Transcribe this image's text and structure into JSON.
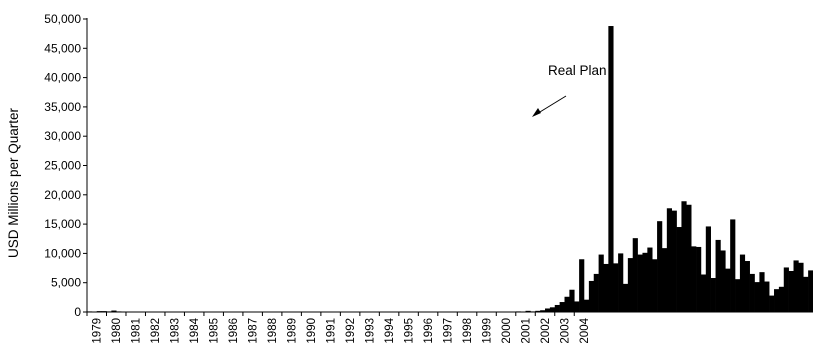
{
  "chart_data": {
    "type": "bar",
    "title": "",
    "xlabel": "",
    "ylabel": "USD Millions per Quarter",
    "ylim": [
      0,
      50000
    ],
    "yticks": [
      0,
      5000,
      10000,
      15000,
      20000,
      25000,
      30000,
      35000,
      40000,
      45000,
      50000
    ],
    "ytick_labels": [
      "0",
      "5,000",
      "10,000",
      "15,000",
      "20,000",
      "25,000",
      "30,000",
      "35,000",
      "40,000",
      "45,000",
      "50,000"
    ],
    "year_labels": [
      "1979",
      "1980",
      "1981",
      "1982",
      "1983",
      "1984",
      "1985",
      "1986",
      "1987",
      "1988",
      "1989",
      "1990",
      "1991",
      "1992",
      "1993",
      "1994",
      "1995",
      "1996",
      "1997",
      "1998",
      "1999",
      "2000",
      "2001",
      "2002",
      "2003",
      "2004"
    ],
    "start_period": "1979-Q1",
    "grid": false,
    "legend": "none",
    "bar_color": "#000000",
    "values": [
      100,
      0,
      150,
      150,
      100,
      250,
      100,
      50,
      50,
      50,
      50,
      50,
      50,
      50,
      50,
      50,
      50,
      50,
      50,
      50,
      50,
      50,
      50,
      50,
      50,
      50,
      50,
      50,
      50,
      50,
      50,
      50,
      50,
      50,
      50,
      50,
      50,
      50,
      50,
      50,
      50,
      50,
      50,
      50,
      50,
      50,
      50,
      50,
      50,
      50,
      50,
      50,
      50,
      50,
      50,
      50,
      50,
      50,
      50,
      50,
      50,
      50,
      50,
      50,
      50,
      50,
      50,
      50,
      50,
      50,
      50,
      50,
      50,
      50,
      50,
      50,
      50,
      50,
      50,
      50,
      50,
      50,
      50,
      50,
      50,
      50,
      50,
      50,
      100,
      50,
      200,
      100,
      200,
      300,
      600,
      800,
      1200,
      1700,
      2600,
      3800,
      1800,
      9000,
      2100,
      5300,
      6500,
      9800,
      8200,
      48800,
      8300,
      10000,
      4800,
      9200,
      12600,
      9800,
      10100,
      11000,
      9000,
      15500,
      10900,
      17700,
      17300,
      14500,
      18900,
      18300,
      11200,
      11100,
      6400,
      14600,
      5800,
      12300,
      10500,
      7400,
      15800,
      5600,
      9800,
      8700,
      6500,
      5100,
      6800,
      5200,
      2800,
      3900,
      4300,
      7600,
      7000,
      8800,
      8400,
      6000,
      7100
    ],
    "annotations": [
      {
        "text": "Real Plan",
        "points_to_period": "1994-Q3"
      }
    ]
  }
}
